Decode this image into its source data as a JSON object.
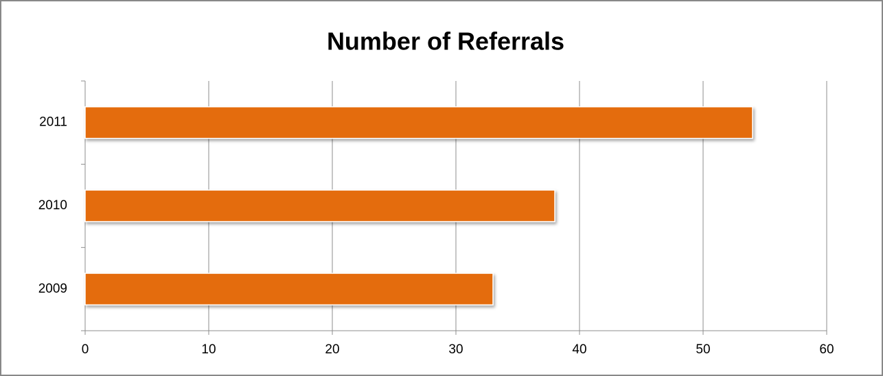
{
  "chart_data": {
    "type": "bar",
    "orientation": "horizontal",
    "title": "Number of Referrals",
    "categories": [
      "2009",
      "2010",
      "2011"
    ],
    "values": [
      33,
      38,
      54
    ],
    "color": "#e46c0a",
    "xlim": [
      0,
      60
    ],
    "xticks": [
      0,
      10,
      20,
      30,
      40,
      50,
      60
    ],
    "grid": true
  }
}
